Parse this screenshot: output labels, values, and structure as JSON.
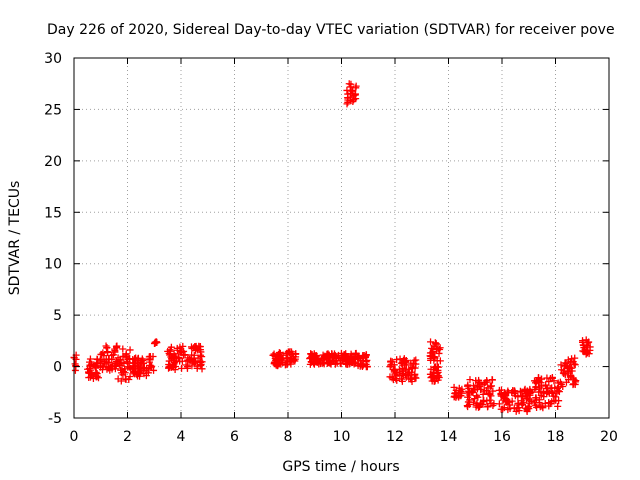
{
  "chart_data": {
    "type": "scatter",
    "title": "Day 226 of 2020, Sidereal Day-to-day VTEC variation (SDTVAR) for receiver pove",
    "xlabel": "GPS time / hours",
    "ylabel": "SDTVAR / TECUs",
    "xlim": [
      0,
      20
    ],
    "ylim": [
      -5,
      30
    ],
    "xticks": [
      "0",
      "2",
      "4",
      "6",
      "8",
      "10",
      "12",
      "14",
      "16",
      "18",
      "20"
    ],
    "yticks": [
      "-5",
      "0",
      "5",
      "10",
      "15",
      "20",
      "25",
      "30"
    ],
    "grid": true,
    "marker": "plus",
    "color": "#ff0000",
    "segments": [
      {
        "x_start": 0.0,
        "x_end": 0.1,
        "y_min": -1.0,
        "y_max": 1.6
      },
      {
        "x_start": 0.5,
        "x_end": 1.0,
        "y_min": -1.2,
        "y_max": 0.8
      },
      {
        "x_start": 1.0,
        "x_end": 1.6,
        "y_min": -0.5,
        "y_max": 2.0
      },
      {
        "x_start": 1.6,
        "x_end": 2.1,
        "y_min": -1.8,
        "y_max": 2.0
      },
      {
        "x_start": 2.1,
        "x_end": 3.0,
        "y_min": -1.0,
        "y_max": 1.0
      },
      {
        "x_start": 3.0,
        "x_end": 3.1,
        "y_min": 2.2,
        "y_max": 2.4
      },
      {
        "x_start": 3.5,
        "x_end": 4.8,
        "y_min": -0.3,
        "y_max": 2.0
      },
      {
        "x_start": 7.4,
        "x_end": 8.3,
        "y_min": 0.0,
        "y_max": 1.5
      },
      {
        "x_start": 8.8,
        "x_end": 10.6,
        "y_min": 0.2,
        "y_max": 1.3
      },
      {
        "x_start": 10.2,
        "x_end": 10.55,
        "y_min": 25.5,
        "y_max": 27.5
      },
      {
        "x_start": 10.6,
        "x_end": 11.0,
        "y_min": -0.2,
        "y_max": 1.2
      },
      {
        "x_start": 11.8,
        "x_end": 12.8,
        "y_min": -1.5,
        "y_max": 0.8
      },
      {
        "x_start": 13.3,
        "x_end": 13.7,
        "y_min": 0.5,
        "y_max": 2.5
      },
      {
        "x_start": 13.3,
        "x_end": 13.7,
        "y_min": -1.5,
        "y_max": 0.0
      },
      {
        "x_start": 14.2,
        "x_end": 14.5,
        "y_min": -3.0,
        "y_max": -2.0
      },
      {
        "x_start": 14.7,
        "x_end": 15.7,
        "y_min": -4.0,
        "y_max": -1.2
      },
      {
        "x_start": 15.9,
        "x_end": 17.1,
        "y_min": -4.4,
        "y_max": -2.2
      },
      {
        "x_start": 17.2,
        "x_end": 18.2,
        "y_min": -4.0,
        "y_max": -1.0
      },
      {
        "x_start": 18.2,
        "x_end": 18.8,
        "y_min": -2.0,
        "y_max": 1.0
      },
      {
        "x_start": 19.0,
        "x_end": 19.3,
        "y_min": 1.0,
        "y_max": 2.6
      }
    ]
  }
}
